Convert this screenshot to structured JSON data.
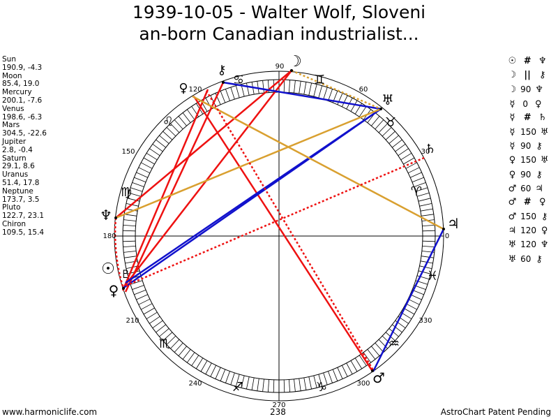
{
  "title": {
    "line1": "1939-10-05 - Walter Wolf, Sloveni",
    "line2": "an-born Canadian industrialist..."
  },
  "planets": [
    {
      "name": "Sun",
      "coords": "190.9, -4.3"
    },
    {
      "name": "Moon",
      "coords": "85.4, 19.0"
    },
    {
      "name": "Mercury",
      "coords": "200.1, -7.6"
    },
    {
      "name": "Venus",
      "coords": "198.6, -6.3"
    },
    {
      "name": "Mars",
      "coords": "304.5, -22.6"
    },
    {
      "name": "Jupiter",
      "coords": "2.8, -0.4"
    },
    {
      "name": "Saturn",
      "coords": "29.1, 8.6"
    },
    {
      "name": "Uranus",
      "coords": "51.4, 17.8"
    },
    {
      "name": "Neptune",
      "coords": "173.7, 3.5"
    },
    {
      "name": "Pluto",
      "coords": "122.7, 23.1"
    },
    {
      "name": "Chiron",
      "coords": "109.5, 15.4"
    }
  ],
  "aspects": [
    {
      "p1": "☉",
      "sym": "#",
      "p2": "♆"
    },
    {
      "p1": "☽",
      "sym": "||",
      "p2": "⚷"
    },
    {
      "p1": "☽",
      "sym": "90",
      "p2": "♆"
    },
    {
      "p1": "☿",
      "sym": "0",
      "p2": "♀"
    },
    {
      "p1": "☿",
      "sym": "#",
      "p2": "♄"
    },
    {
      "p1": "☿",
      "sym": "150",
      "p2": "♅"
    },
    {
      "p1": "☿",
      "sym": "90",
      "p2": "⚷"
    },
    {
      "p1": "♀",
      "sym": "150",
      "p2": "♅"
    },
    {
      "p1": "♀",
      "sym": "90",
      "p2": "⚷"
    },
    {
      "p1": "♂",
      "sym": "60",
      "p2": "♃"
    },
    {
      "p1": "♂",
      "sym": "#",
      "p2": "♀"
    },
    {
      "p1": "♂",
      "sym": "150",
      "p2": "⚷"
    },
    {
      "p1": "♃",
      "sym": "120",
      "p2": "♀"
    },
    {
      "p1": "♅",
      "sym": "120",
      "p2": "♆"
    },
    {
      "p1": "♅",
      "sym": "60",
      "p2": "⚷"
    }
  ],
  "wheel": {
    "degree_labels": [
      "90",
      "60",
      "30",
      "0",
      "330",
      "300",
      "270",
      "240",
      "210",
      "180",
      "150",
      "120"
    ],
    "bottom_value": "238"
  },
  "footer": {
    "left": "www.harmoniclife.com",
    "right": "AstroChart Patent Pending"
  },
  "colors": {
    "red": "#ee1111",
    "blue": "#1111cc",
    "gold": "#d9a030",
    "tick": "#000000"
  }
}
